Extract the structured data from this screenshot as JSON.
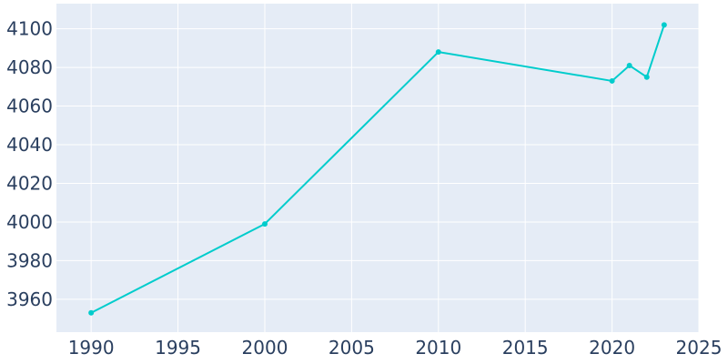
{
  "chart_data": {
    "type": "line",
    "x": [
      1990,
      2000,
      2010,
      2020,
      2021,
      2022,
      2023
    ],
    "series": [
      {
        "values": [
          3953,
          3999,
          4088,
          4073,
          4081,
          4075,
          4102
        ]
      }
    ],
    "xlim": [
      1988,
      2025
    ],
    "ylim": [
      3943,
      4113
    ],
    "x_ticks": [
      1990,
      1995,
      2000,
      2005,
      2010,
      2015,
      2020,
      2025
    ],
    "y_ticks": [
      3960,
      3980,
      4000,
      4020,
      4040,
      4060,
      4080,
      4100
    ],
    "grid": true,
    "title": "",
    "xlabel": "",
    "ylabel": "",
    "colors": {
      "line": "#00cccc",
      "plot_background": "#e5ecf6",
      "grid": "#ffffff",
      "tick_text": "#2a3f5f"
    }
  }
}
